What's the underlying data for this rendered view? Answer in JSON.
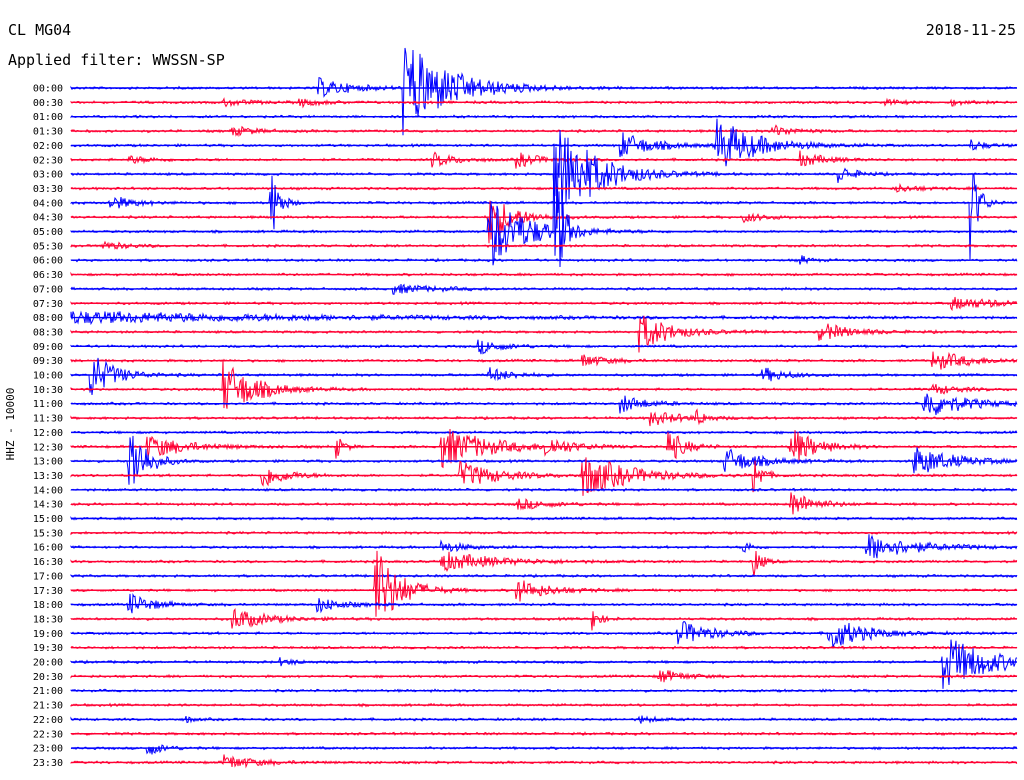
{
  "header": {
    "station": "CL MG04",
    "filter": "Applied filter: WWSSN-SP",
    "date": "2018-11-25"
  },
  "colors": {
    "odd": "#0000ff",
    "even": "#ff0033"
  },
  "chart_data": {
    "type": "line",
    "title": "CL MG04",
    "ylabel": "HHZ - 10000",
    "row_labels": [
      "00:00",
      "00:30",
      "01:00",
      "01:30",
      "02:00",
      "02:30",
      "03:00",
      "03:30",
      "04:00",
      "04:30",
      "05:00",
      "05:30",
      "06:00",
      "06:30",
      "07:00",
      "07:30",
      "08:00",
      "08:30",
      "09:00",
      "09:30",
      "10:00",
      "10:30",
      "11:00",
      "11:30",
      "12:00",
      "12:30",
      "13:00",
      "13:30",
      "14:00",
      "14:30",
      "15:00",
      "15:30",
      "16:00",
      "16:30",
      "17:00",
      "17:30",
      "18:00",
      "18:30",
      "19:00",
      "19:30",
      "20:00",
      "20:30",
      "21:00",
      "21:30",
      "22:00",
      "22:30",
      "23:00",
      "23:30"
    ],
    "row_minutes": 30,
    "events": [
      {
        "row": 0,
        "at": 0.26,
        "amp": 10,
        "dur": 0.04
      },
      {
        "row": 0,
        "at": 0.35,
        "amp": 50,
        "dur": 0.06
      },
      {
        "row": 1,
        "at": 0.16,
        "amp": 4,
        "dur": 0.03
      },
      {
        "row": 1,
        "at": 0.24,
        "amp": 4,
        "dur": 0.03
      },
      {
        "row": 1,
        "at": 0.86,
        "amp": 3,
        "dur": 0.02
      },
      {
        "row": 1,
        "at": 0.93,
        "amp": 3,
        "dur": 0.02
      },
      {
        "row": 3,
        "at": 0.17,
        "amp": 5,
        "dur": 0.03
      },
      {
        "row": 3,
        "at": 0.74,
        "amp": 6,
        "dur": 0.03
      },
      {
        "row": 4,
        "at": 0.58,
        "amp": 14,
        "dur": 0.04
      },
      {
        "row": 4,
        "at": 0.68,
        "amp": 30,
        "dur": 0.05
      },
      {
        "row": 4,
        "at": 0.95,
        "amp": 6,
        "dur": 0.02
      },
      {
        "row": 5,
        "at": 0.06,
        "amp": 4,
        "dur": 0.03
      },
      {
        "row": 5,
        "at": 0.38,
        "amp": 8,
        "dur": 0.03
      },
      {
        "row": 5,
        "at": 0.47,
        "amp": 8,
        "dur": 0.03
      },
      {
        "row": 5,
        "at": 0.77,
        "amp": 8,
        "dur": 0.03
      },
      {
        "row": 6,
        "at": 0.51,
        "amp": 60,
        "dur": 0.05
      },
      {
        "row": 6,
        "at": 0.81,
        "amp": 10,
        "dur": 0.02
      },
      {
        "row": 7,
        "at": 0.87,
        "amp": 4,
        "dur": 0.03
      },
      {
        "row": 8,
        "at": 0.04,
        "amp": 8,
        "dur": 0.03
      },
      {
        "row": 8,
        "at": 0.21,
        "amp": 50,
        "dur": 0.01
      },
      {
        "row": 8,
        "at": 0.95,
        "amp": 60,
        "dur": 0.01
      },
      {
        "row": 9,
        "at": 0.44,
        "amp": 30,
        "dur": 0.03
      },
      {
        "row": 9,
        "at": 0.71,
        "amp": 5,
        "dur": 0.03
      },
      {
        "row": 10,
        "at": 0.44,
        "amp": 40,
        "dur": 0.05
      },
      {
        "row": 10,
        "at": 0.51,
        "amp": 90,
        "dur": 0.01
      },
      {
        "row": 11,
        "at": 0.03,
        "amp": 5,
        "dur": 0.03
      },
      {
        "row": 12,
        "at": 0.77,
        "amp": 6,
        "dur": 0.01
      },
      {
        "row": 14,
        "at": 0.34,
        "amp": 5,
        "dur": 0.05
      },
      {
        "row": 15,
        "at": 0.93,
        "amp": 6,
        "dur": 0.07
      },
      {
        "row": 16,
        "at": 0.0,
        "amp": 6,
        "dur": 0.3
      },
      {
        "row": 17,
        "at": 0.6,
        "amp": 20,
        "dur": 0.04
      },
      {
        "row": 17,
        "at": 0.79,
        "amp": 10,
        "dur": 0.04
      },
      {
        "row": 18,
        "at": 0.43,
        "amp": 8,
        "dur": 0.03
      },
      {
        "row": 19,
        "at": 0.54,
        "amp": 7,
        "dur": 0.03
      },
      {
        "row": 19,
        "at": 0.91,
        "amp": 10,
        "dur": 0.05
      },
      {
        "row": 20,
        "at": 0.02,
        "amp": 25,
        "dur": 0.03
      },
      {
        "row": 20,
        "at": 0.44,
        "amp": 8,
        "dur": 0.03
      },
      {
        "row": 20,
        "at": 0.73,
        "amp": 8,
        "dur": 0.03
      },
      {
        "row": 21,
        "at": 0.16,
        "amp": 30,
        "dur": 0.04
      },
      {
        "row": 21,
        "at": 0.91,
        "amp": 6,
        "dur": 0.03
      },
      {
        "row": 22,
        "at": 0.58,
        "amp": 10,
        "dur": 0.03
      },
      {
        "row": 22,
        "at": 0.9,
        "amp": 16,
        "dur": 0.05
      },
      {
        "row": 23,
        "at": 0.61,
        "amp": 8,
        "dur": 0.04
      },
      {
        "row": 23,
        "at": 0.66,
        "amp": 10,
        "dur": 0.01
      },
      {
        "row": 25,
        "at": 0.08,
        "amp": 12,
        "dur": 0.05
      },
      {
        "row": 25,
        "at": 0.28,
        "amp": 12,
        "dur": 0.01
      },
      {
        "row": 25,
        "at": 0.39,
        "amp": 22,
        "dur": 0.06
      },
      {
        "row": 25,
        "at": 0.5,
        "amp": 10,
        "dur": 0.03
      },
      {
        "row": 25,
        "at": 0.63,
        "amp": 20,
        "dur": 0.02
      },
      {
        "row": 25,
        "at": 0.76,
        "amp": 22,
        "dur": 0.03
      },
      {
        "row": 26,
        "at": 0.06,
        "amp": 50,
        "dur": 0.02
      },
      {
        "row": 26,
        "at": 0.69,
        "amp": 14,
        "dur": 0.04
      },
      {
        "row": 26,
        "at": 0.89,
        "amp": 16,
        "dur": 0.05
      },
      {
        "row": 27,
        "at": 0.2,
        "amp": 14,
        "dur": 0.03
      },
      {
        "row": 27,
        "at": 0.41,
        "amp": 14,
        "dur": 0.05
      },
      {
        "row": 27,
        "at": 0.54,
        "amp": 22,
        "dur": 0.06
      },
      {
        "row": 27,
        "at": 0.72,
        "amp": 28,
        "dur": 0.01
      },
      {
        "row": 29,
        "at": 0.47,
        "amp": 6,
        "dur": 0.04
      },
      {
        "row": 29,
        "at": 0.76,
        "amp": 14,
        "dur": 0.03
      },
      {
        "row": 32,
        "at": 0.39,
        "amp": 6,
        "dur": 0.03
      },
      {
        "row": 32,
        "at": 0.71,
        "amp": 8,
        "dur": 0.01
      },
      {
        "row": 32,
        "at": 0.84,
        "amp": 14,
        "dur": 0.06
      },
      {
        "row": 33,
        "at": 0.39,
        "amp": 10,
        "dur": 0.07
      },
      {
        "row": 33,
        "at": 0.72,
        "amp": 20,
        "dur": 0.01
      },
      {
        "row": 35,
        "at": 0.32,
        "amp": 50,
        "dur": 0.03
      },
      {
        "row": 35,
        "at": 0.47,
        "amp": 12,
        "dur": 0.04
      },
      {
        "row": 36,
        "at": 0.06,
        "amp": 12,
        "dur": 0.03
      },
      {
        "row": 36,
        "at": 0.26,
        "amp": 8,
        "dur": 0.03
      },
      {
        "row": 37,
        "at": 0.17,
        "amp": 12,
        "dur": 0.04
      },
      {
        "row": 37,
        "at": 0.55,
        "amp": 14,
        "dur": 0.01
      },
      {
        "row": 38,
        "at": 0.64,
        "amp": 14,
        "dur": 0.04
      },
      {
        "row": 38,
        "at": 0.8,
        "amp": 20,
        "dur": 0.04
      },
      {
        "row": 40,
        "at": 0.92,
        "amp": 30,
        "dur": 0.06
      },
      {
        "row": 40,
        "at": 0.22,
        "amp": 4,
        "dur": 0.02
      },
      {
        "row": 41,
        "at": 0.62,
        "amp": 8,
        "dur": 0.03
      },
      {
        "row": 44,
        "at": 0.12,
        "amp": 4,
        "dur": 0.01
      },
      {
        "row": 44,
        "at": 0.6,
        "amp": 4,
        "dur": 0.02
      },
      {
        "row": 46,
        "at": 0.08,
        "amp": 8,
        "dur": 0.02
      },
      {
        "row": 47,
        "at": 0.16,
        "amp": 8,
        "dur": 0.04
      }
    ]
  }
}
